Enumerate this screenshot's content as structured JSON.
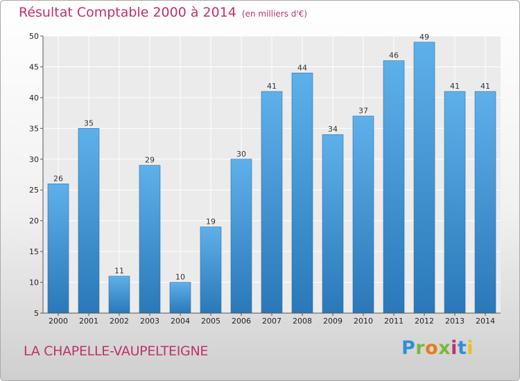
{
  "chart_data": {
    "type": "bar",
    "title": "Résultat Comptable 2000 à 2014",
    "subtitle": "(en milliers d'€)",
    "categories": [
      "2000",
      "2001",
      "2002",
      "2003",
      "2004",
      "2005",
      "2006",
      "2007",
      "2008",
      "2009",
      "2010",
      "2011",
      "2012",
      "2013",
      "2014"
    ],
    "values": [
      26,
      35,
      11,
      29,
      10,
      19,
      30,
      41,
      44,
      34,
      37,
      46,
      49,
      41,
      41
    ],
    "ylim": [
      5,
      50
    ],
    "yticks": [
      5,
      10,
      15,
      20,
      25,
      30,
      35,
      40,
      45,
      50
    ],
    "grid": true,
    "bar_color": "#3f95d6",
    "title_color": "#c0306a"
  },
  "footer": {
    "place_name": "LA CHAPELLE-VAUPELTEIGNE",
    "logo_text": "Proxiti"
  }
}
